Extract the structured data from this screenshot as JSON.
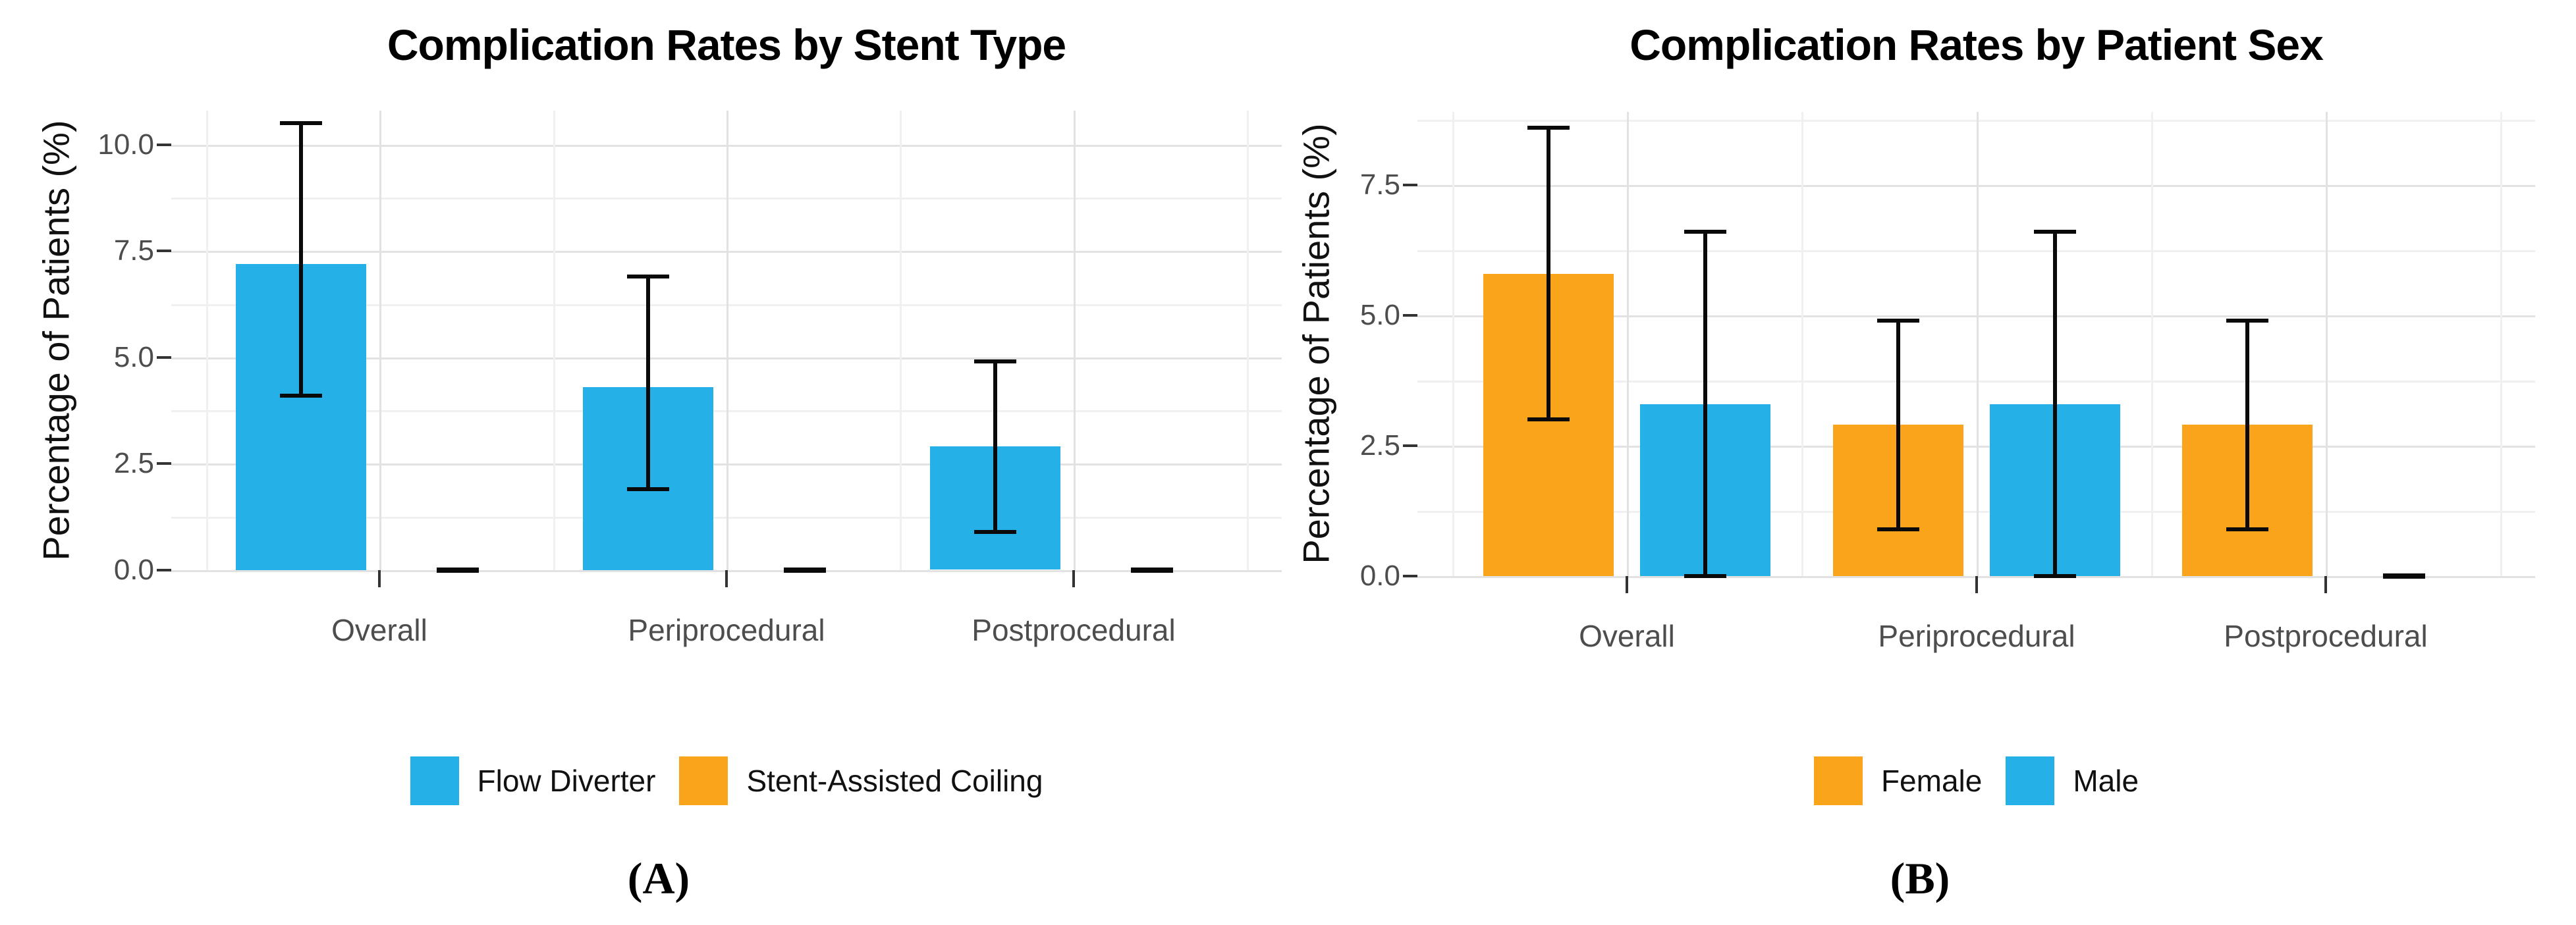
{
  "chart_data": [
    {
      "id": "A",
      "type": "bar",
      "title": "Complication Rates by Stent Type",
      "ylabel": "Percentage of Patients (%)",
      "xlabel": "",
      "caption": "(A)",
      "categories": [
        "Overall",
        "Periprocedural",
        "Postprocedural"
      ],
      "y_ticks": [
        {
          "value": 0,
          "label": "0.0"
        },
        {
          "value": 2.5,
          "label": "2.5"
        },
        {
          "value": 5,
          "label": "5.0"
        },
        {
          "value": 7.5,
          "label": "7.5"
        },
        {
          "value": 10,
          "label": "10.0"
        }
      ],
      "y_minor_ticks": [
        1.25,
        3.75,
        6.25,
        8.75
      ],
      "ylim": [
        0,
        10.8
      ],
      "grid": true,
      "legend_position": "bottom",
      "series": [
        {
          "name": "Flow Diverter",
          "color": "#25B1E8",
          "values": [
            7.2,
            4.3,
            2.9
          ],
          "ci_low": [
            4.1,
            1.9,
            0.9
          ],
          "ci_high": [
            10.5,
            6.9,
            4.9
          ]
        },
        {
          "name": "Stent-Assisted Coiling",
          "color": "#FAA41B",
          "values": [
            0,
            0,
            0
          ],
          "ci_low": [
            0,
            0,
            0
          ],
          "ci_high": [
            0,
            0,
            0
          ]
        }
      ]
    },
    {
      "id": "B",
      "type": "bar",
      "title": "Complication Rates by Patient Sex",
      "ylabel": "Percentage of Patients (%)",
      "xlabel": "",
      "caption": "(B)",
      "categories": [
        "Overall",
        "Periprocedural",
        "Postprocedural"
      ],
      "y_ticks": [
        {
          "value": 0,
          "label": "0.0"
        },
        {
          "value": 2.5,
          "label": "2.5"
        },
        {
          "value": 5,
          "label": "5.0"
        },
        {
          "value": 7.5,
          "label": "7.5"
        }
      ],
      "y_minor_ticks": [
        1.25,
        3.75,
        6.25,
        8.75
      ],
      "ylim": [
        0,
        8.9
      ],
      "grid": true,
      "legend_position": "bottom",
      "series": [
        {
          "name": "Female",
          "color": "#FAA41B",
          "values": [
            5.8,
            2.9,
            2.9
          ],
          "ci_low": [
            3.0,
            0.9,
            0.9
          ],
          "ci_high": [
            8.6,
            4.9,
            4.9
          ]
        },
        {
          "name": "Male",
          "color": "#25B1E8",
          "values": [
            3.3,
            3.3,
            0
          ],
          "ci_low": [
            0,
            0,
            0
          ],
          "ci_high": [
            6.6,
            6.6,
            0
          ]
        }
      ]
    }
  ]
}
